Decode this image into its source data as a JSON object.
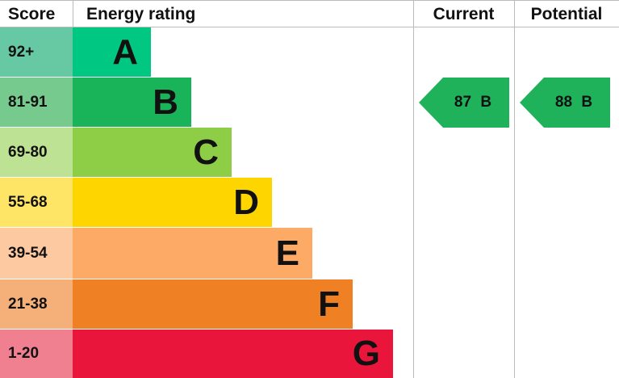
{
  "chart_data": {
    "type": "bar",
    "headers": {
      "score": "Score",
      "rating": "Energy rating",
      "current": "Current",
      "potential": "Potential"
    },
    "bands": [
      {
        "letter": "A",
        "range": "92+",
        "color": "#00c781",
        "score_color": "#66c9a3"
      },
      {
        "letter": "B",
        "range": "81-91",
        "color": "#19b459",
        "score_color": "#77ca8e"
      },
      {
        "letter": "C",
        "range": "69-80",
        "color": "#8dce46",
        "score_color": "#bde293"
      },
      {
        "letter": "D",
        "range": "55-68",
        "color": "#ffd500",
        "score_color": "#ffe566"
      },
      {
        "letter": "E",
        "range": "39-54",
        "color": "#fcaa65",
        "score_color": "#fdc9a0"
      },
      {
        "letter": "F",
        "range": "21-38",
        "color": "#ef8023",
        "score_color": "#f5b07a"
      },
      {
        "letter": "G",
        "range": "1-20",
        "color": "#e9153b",
        "score_color": "#f08090"
      }
    ],
    "current": {
      "value": 87,
      "band": "B",
      "label": "87  B",
      "color": "#1fb25a"
    },
    "potential": {
      "value": 88,
      "band": "B",
      "label": "88  B",
      "color": "#1fb25a"
    }
  }
}
